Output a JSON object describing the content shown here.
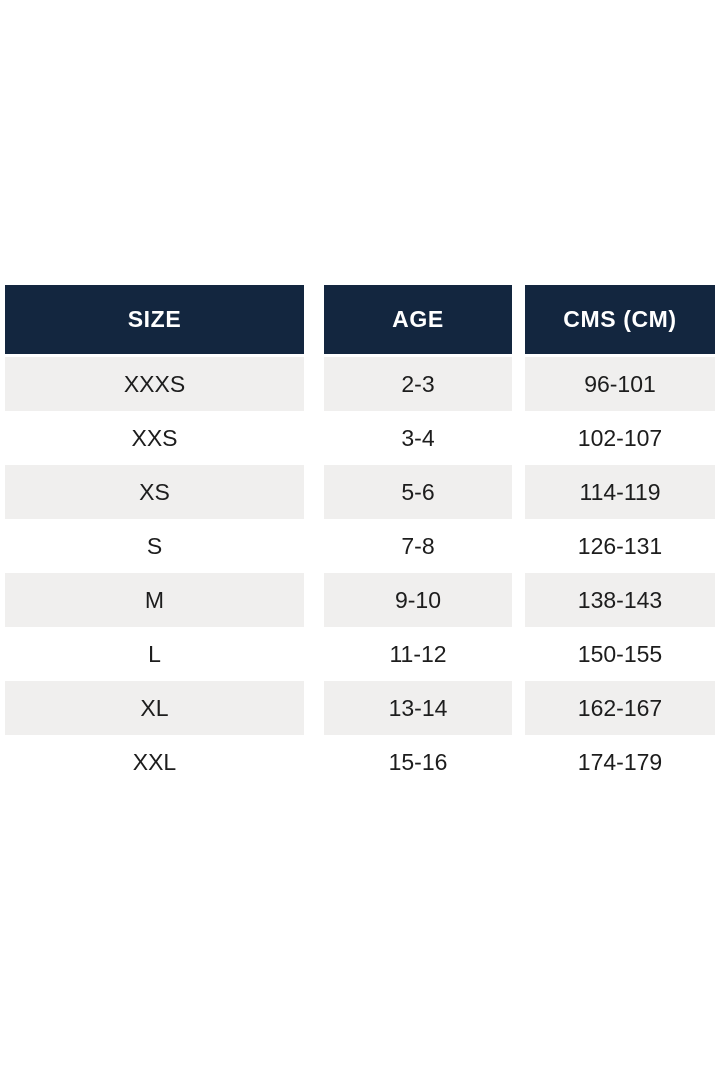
{
  "colors": {
    "page_bg": "#ffffff",
    "header_bg": "#13263f",
    "header_text": "#ffffff",
    "row_alt_bg": "#f0efee",
    "row_bg": "#ffffff",
    "cell_text": "#1d1d1d"
  },
  "chart_data": {
    "type": "table",
    "title": "",
    "columns": [
      "SIZE",
      "AGE",
      "CMS (CM)"
    ],
    "rows": [
      [
        "XXXS",
        "2-3",
        "96-101"
      ],
      [
        "XXS",
        "3-4",
        "102-107"
      ],
      [
        "XS",
        "5-6",
        "114-119"
      ],
      [
        "S",
        "7-8",
        "126-131"
      ],
      [
        "M",
        "9-10",
        "138-143"
      ],
      [
        "L",
        "11-12",
        "150-155"
      ],
      [
        "XL",
        "13-14",
        "162-167"
      ],
      [
        "XXL",
        "15-16",
        "174-179"
      ]
    ]
  },
  "table": {
    "columns": [
      {
        "id": "size",
        "header": "SIZE",
        "values": [
          "XXXS",
          "XXS",
          "XS",
          "S",
          "M",
          "L",
          "XL",
          "XXL"
        ]
      },
      {
        "id": "age",
        "header": "AGE",
        "values": [
          "2-3",
          "3-4",
          "5-6",
          "7-8",
          "9-10",
          "11-12",
          "13-14",
          "15-16"
        ]
      },
      {
        "id": "cms",
        "header": "CMS (CM)",
        "values": [
          "96-101",
          "102-107",
          "114-119",
          "126-131",
          "138-143",
          "150-155",
          "162-167",
          "174-179"
        ]
      }
    ]
  }
}
